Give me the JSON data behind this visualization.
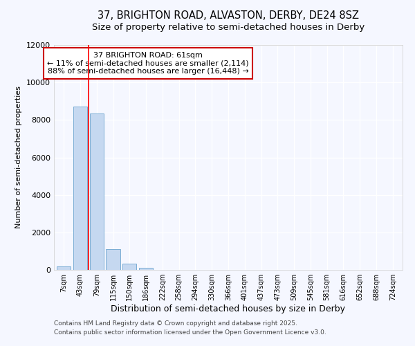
{
  "title_line1": "37, BRIGHTON ROAD, ALVASTON, DERBY, DE24 8SZ",
  "title_line2": "Size of property relative to semi-detached houses in Derby",
  "xlabel": "Distribution of semi-detached houses by size in Derby",
  "ylabel": "Number of semi-detached properties",
  "categories": [
    "7sqm",
    "43sqm",
    "79sqm",
    "115sqm",
    "150sqm",
    "186sqm",
    "222sqm",
    "258sqm",
    "294sqm",
    "330sqm",
    "366sqm",
    "401sqm",
    "437sqm",
    "473sqm",
    "509sqm",
    "545sqm",
    "581sqm",
    "616sqm",
    "652sqm",
    "688sqm",
    "724sqm"
  ],
  "values": [
    200,
    8700,
    8350,
    1100,
    320,
    100,
    0,
    0,
    0,
    0,
    0,
    0,
    0,
    0,
    0,
    0,
    0,
    0,
    0,
    0,
    0
  ],
  "bar_color": "#c5d8f0",
  "bar_edge_color": "#7aadd4",
  "red_line_x": 1.5,
  "annotation_text": "37 BRIGHTON ROAD: 61sqm\n← 11% of semi-detached houses are smaller (2,114)\n88% of semi-detached houses are larger (16,448) →",
  "annotation_box_color": "#ffffff",
  "annotation_box_edge_color": "#cc0000",
  "ylim": [
    0,
    12000
  ],
  "yticks": [
    0,
    2000,
    4000,
    6000,
    8000,
    10000,
    12000
  ],
  "background_color": "#f5f7ff",
  "grid_color": "#ffffff",
  "footer_line1": "Contains HM Land Registry data © Crown copyright and database right 2025.",
  "footer_line2": "Contains public sector information licensed under the Open Government Licence v3.0.",
  "title_fontsize": 10.5,
  "subtitle_fontsize": 9.5,
  "tick_fontsize": 7,
  "ylabel_fontsize": 8,
  "xlabel_fontsize": 9,
  "footer_fontsize": 6.5,
  "annotation_fontsize": 8
}
